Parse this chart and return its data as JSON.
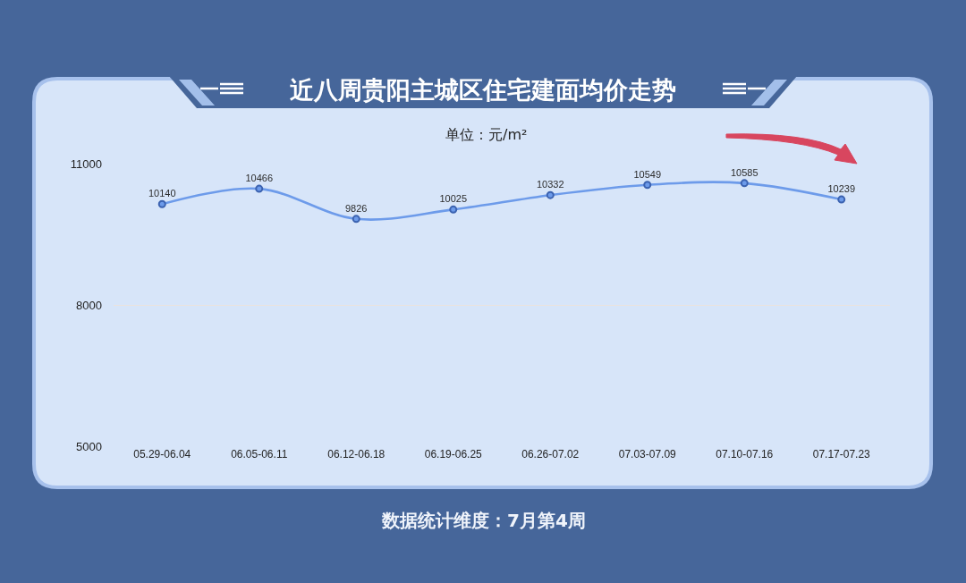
{
  "chart_data": {
    "type": "line",
    "title": "近八周贵阳主城区住宅建面均价走势",
    "subtitle": "单位：元/m²",
    "annotations": [
      "数据统计维度：7月第4周"
    ],
    "categories": [
      "05.29-06.04",
      "06.05-06.11",
      "06.12-06.18",
      "06.19-06.25",
      "06.26-07.02",
      "07.03-07.09",
      "07.10-07.16",
      "07.17-07.23"
    ],
    "series": [
      {
        "color": "#6d9bea",
        "values": [
          10140,
          10466,
          9826,
          10025,
          10332,
          10549,
          10585,
          10239
        ]
      }
    ],
    "ylim": [
      5000,
      11000
    ],
    "yticks": [
      5000,
      8000,
      11000
    ],
    "grid": "y",
    "marker": "circle",
    "line_style": "solid",
    "data_labels": true
  }
}
